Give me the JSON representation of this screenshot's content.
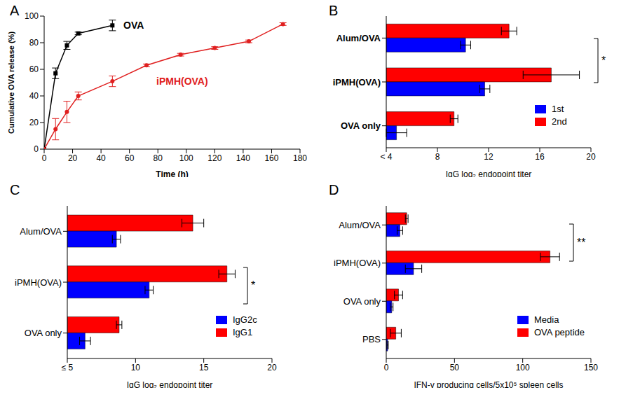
{
  "chart_data": [
    {
      "type": "line",
      "title": "A",
      "x_label": "Time (h)",
      "y_label": "Cumulative OVA release (%)",
      "xlim": [
        0,
        180
      ],
      "xticks": [
        0,
        20,
        40,
        60,
        80,
        100,
        120,
        140,
        160,
        180
      ],
      "ylim": [
        0,
        100
      ],
      "yticks": [
        0,
        20,
        40,
        60,
        80,
        100
      ],
      "series": [
        {
          "name": "OVA",
          "color": "#000000",
          "marker": "square",
          "x": [
            0,
            8,
            16,
            24,
            48
          ],
          "values": [
            0,
            57,
            78,
            87,
            93
          ],
          "errors": [
            0,
            4,
            3,
            1,
            4
          ]
        },
        {
          "name": "iPMH(OVA)",
          "color": "#e02020",
          "marker": "circle",
          "x": [
            0,
            8,
            16,
            24,
            48,
            72,
            96,
            120,
            144,
            168
          ],
          "values": [
            0,
            15,
            28,
            40,
            51,
            63,
            71,
            76,
            81,
            94
          ],
          "errors": [
            0,
            8,
            8,
            3,
            4,
            1,
            1,
            1,
            1,
            1
          ]
        }
      ]
    },
    {
      "type": "bar",
      "orientation": "horizontal",
      "title": "B",
      "x_label": "IgG log₂ endopoint titer",
      "categories": [
        "Alum/OVA",
        "iPMH(OVA)",
        "OVA only"
      ],
      "xlim": [
        4,
        20
      ],
      "xticks": [
        {
          "value": 4,
          "label": "< 4"
        },
        8,
        12,
        16,
        20
      ],
      "series": [
        {
          "name": "1st",
          "color": "#0000ff",
          "values": [
            10.2,
            11.7,
            4.8
          ],
          "errors": [
            0.4,
            0.4,
            0.8
          ]
        },
        {
          "name": "2nd",
          "color": "#ff0000",
          "values": [
            13.6,
            16.9,
            9.3
          ],
          "errors": [
            0.6,
            2.2,
            0.3
          ]
        }
      ],
      "annotations": [
        "*"
      ]
    },
    {
      "type": "bar",
      "orientation": "horizontal",
      "title": "C",
      "x_label": "IgG log₂ endopoint titer",
      "categories": [
        "Alum/OVA",
        "iPMH(OVA)",
        "OVA only"
      ],
      "xlim": [
        5,
        20
      ],
      "xticks": [
        {
          "value": 5,
          "label": "≤ 5"
        },
        10,
        15,
        20
      ],
      "series": [
        {
          "name": "IgG2c",
          "color": "#0000ff",
          "values": [
            8.6,
            11.0,
            6.3
          ],
          "errors": [
            0.3,
            0.3,
            0.4
          ]
        },
        {
          "name": "IgG1",
          "color": "#ff0000",
          "values": [
            14.2,
            16.7,
            8.8
          ],
          "errors": [
            0.8,
            0.6,
            0.2
          ]
        }
      ],
      "annotations": [
        "*"
      ]
    },
    {
      "type": "bar",
      "orientation": "horizontal",
      "title": "D",
      "x_label": "IFN-γ producing cells/5x10⁵ spleen cells",
      "categories": [
        "Alum/OVA",
        "iPMH(OVA)",
        "OVA only",
        "PBS"
      ],
      "xlim": [
        0,
        150
      ],
      "xticks": [
        0,
        50,
        100,
        150
      ],
      "series": [
        {
          "name": "Media",
          "color": "#0000ff",
          "values": [
            10,
            20,
            4,
            1
          ],
          "errors": [
            2,
            6,
            1,
            0.5
          ]
        },
        {
          "name": "OVA peptide",
          "color": "#ff0000",
          "values": [
            15,
            120,
            9,
            7
          ],
          "errors": [
            1,
            7,
            3,
            4
          ]
        }
      ],
      "annotations": [
        "**"
      ]
    }
  ]
}
